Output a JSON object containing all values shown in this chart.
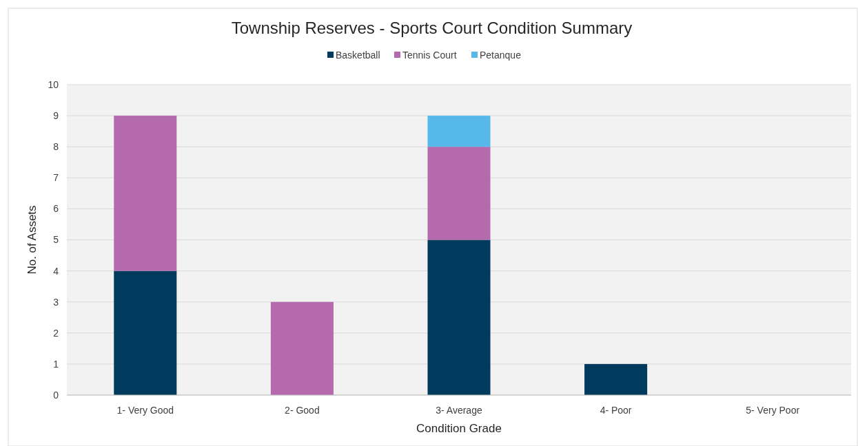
{
  "chart_data": {
    "type": "bar",
    "title": "Township Reserves - Sports Court Condition Summary",
    "xlabel": "Condition Grade",
    "ylabel": "No. of Assets",
    "categories": [
      "1- Very Good",
      "2- Good",
      "3- Average",
      "4- Poor",
      "5- Very Poor"
    ],
    "series": [
      {
        "name": "Basketball",
        "color": "#003a5c",
        "values": [
          4,
          0,
          5,
          1,
          0
        ]
      },
      {
        "name": "Tennis Court",
        "color": "#b46aad",
        "values": [
          5,
          3,
          3,
          0,
          0
        ]
      },
      {
        "name": "Petanque",
        "color": "#56b9e9",
        "values": [
          0,
          0,
          1,
          0,
          0
        ]
      }
    ],
    "stacked": true,
    "ylim": [
      0,
      10
    ],
    "yticks": [
      0,
      1,
      2,
      3,
      4,
      5,
      6,
      7,
      8,
      9,
      10
    ],
    "grid": "y",
    "legend": "top"
  }
}
